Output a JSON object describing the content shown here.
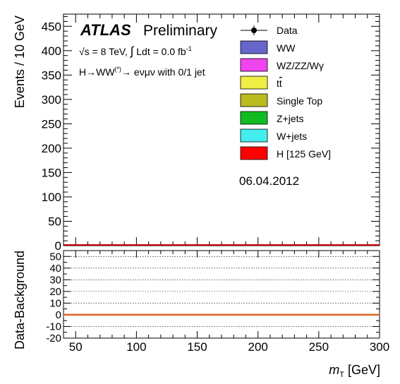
{
  "labels": {
    "atlas": "ATLAS",
    "preliminary": "Preliminary",
    "energy_sqrt": "√s",
    "energy_text": " = 8 TeV, ",
    "lumi_integral": "∫",
    "lumi_text": " Ldt =  0.0 fb",
    "lumi_exp": "-1",
    "channel_pre": "H→WW",
    "channel_sup": "(*)",
    "channel_post": "→ eνμν with 0/1 jet",
    "date": "06.04.2012",
    "ylabel_main": "Events / 10 GeV",
    "ylabel_ratio": "Data-Background",
    "xlabel_symbol": "m",
    "xlabel_sub": "T",
    "xlabel_unit": " [GeV]"
  },
  "legend": [
    {
      "label": "Data",
      "type": "marker",
      "color": "#000000"
    },
    {
      "label": "WW",
      "type": "box",
      "color": "#6666cc"
    },
    {
      "label": "WZ/ZZ/Wγ",
      "type": "box",
      "color": "#ee44ee"
    },
    {
      "label": "t",
      "label_bar": "t",
      "type": "box",
      "color": "#eeee44"
    },
    {
      "label": "Single Top",
      "type": "box",
      "color": "#bbbb22"
    },
    {
      "label": "Z+jets",
      "type": "box",
      "color": "#11bb22"
    },
    {
      "label": "W+jets",
      "type": "box",
      "color": "#44eeee"
    },
    {
      "label": "H [125 GeV]",
      "type": "box",
      "color": "#ff0000"
    }
  ],
  "chart_data": [
    {
      "type": "bar",
      "panel": "main",
      "xlabel": "m_T [GeV]",
      "ylabel": "Events / 10 GeV",
      "xlim": [
        40,
        300
      ],
      "ylim": [
        0,
        475
      ],
      "xticks": [
        50,
        100,
        150,
        200,
        250,
        300
      ],
      "yticks": [
        0,
        50,
        100,
        150,
        200,
        250,
        300,
        350,
        400,
        450
      ],
      "series": [
        {
          "name": "Data",
          "values": []
        },
        {
          "name": "H [125 GeV]",
          "values": []
        }
      ]
    },
    {
      "type": "line",
      "panel": "ratio",
      "xlabel": "m_T [GeV]",
      "ylabel": "Data-Background",
      "xlim": [
        40,
        300
      ],
      "ylim": [
        -20,
        55
      ],
      "xticks": [
        50,
        100,
        150,
        200,
        250,
        300
      ],
      "yticks": [
        -20,
        -10,
        0,
        10,
        20,
        30,
        40,
        50
      ],
      "gridlines_y": [
        -20,
        -10,
        0,
        10,
        20,
        30,
        40,
        50
      ],
      "reference_line": 0
    }
  ]
}
